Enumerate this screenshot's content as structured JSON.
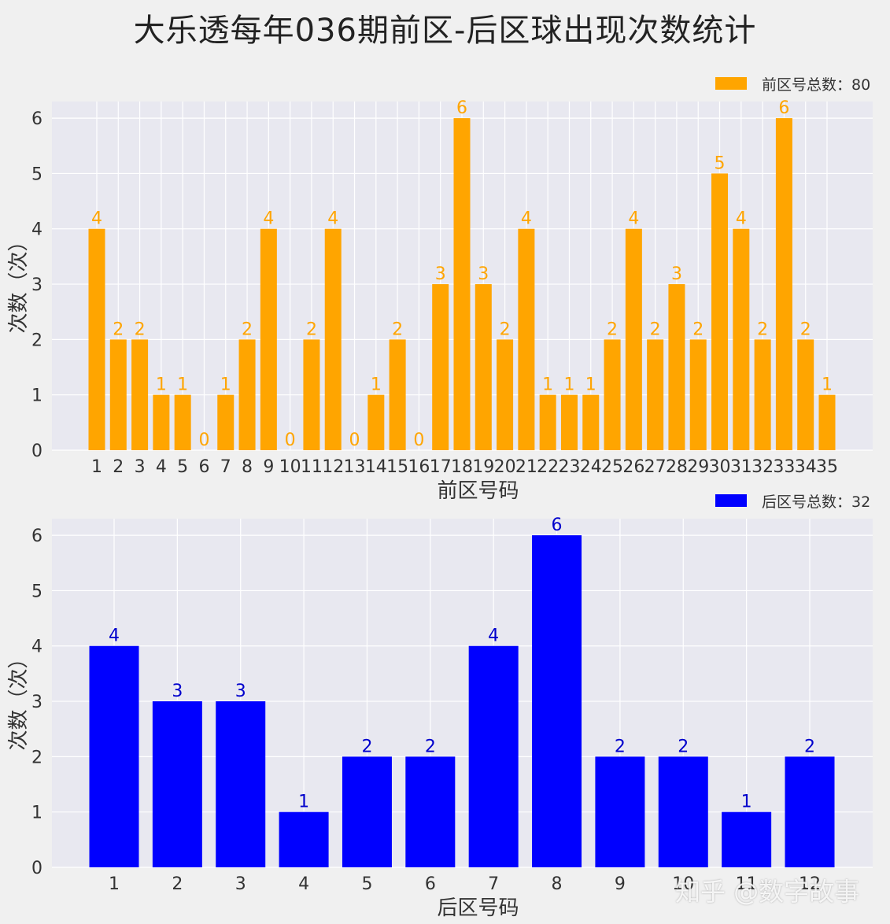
{
  "title": "大乐透每年036期前区-后区球出现次数统计",
  "watermark": "知乎 @数字故事",
  "chart_data": [
    {
      "type": "bar",
      "categories": [
        "1",
        "2",
        "3",
        "4",
        "5",
        "6",
        "7",
        "8",
        "9",
        "10",
        "11",
        "12",
        "13",
        "14",
        "15",
        "16",
        "17",
        "18",
        "19",
        "20",
        "21",
        "22",
        "23",
        "24",
        "25",
        "26",
        "27",
        "28",
        "29",
        "30",
        "31",
        "32",
        "33",
        "34",
        "35"
      ],
      "series": [
        {
          "name": "前区号总数：80",
          "values": [
            4,
            2,
            2,
            1,
            1,
            0,
            1,
            2,
            4,
            0,
            2,
            4,
            0,
            1,
            2,
            0,
            3,
            6,
            3,
            2,
            4,
            1,
            1,
            1,
            2,
            4,
            2,
            3,
            2,
            5,
            4,
            2,
            6,
            2,
            1
          ]
        }
      ],
      "xlabel": "前区号码",
      "ylabel": "次数（次）",
      "ylim": [
        0,
        6.3
      ],
      "yticks": [
        0,
        1,
        2,
        3,
        4,
        5,
        6
      ],
      "color": "#ffa500",
      "label_color": "#ffa500",
      "grid": true,
      "legend": "top-right"
    },
    {
      "type": "bar",
      "categories": [
        "1",
        "2",
        "3",
        "4",
        "5",
        "6",
        "7",
        "8",
        "9",
        "10",
        "11",
        "12"
      ],
      "series": [
        {
          "name": "后区号总数：32",
          "values": [
            4,
            3,
            3,
            1,
            2,
            2,
            4,
            6,
            2,
            2,
            1,
            2
          ]
        }
      ],
      "xlabel": "后区号码",
      "ylabel": "次数（次）",
      "ylim": [
        0,
        6.3
      ],
      "yticks": [
        0,
        1,
        2,
        3,
        4,
        5,
        6
      ],
      "color": "#0000ff",
      "label_color": "#0000cc",
      "grid": true,
      "legend": "top-right"
    }
  ]
}
